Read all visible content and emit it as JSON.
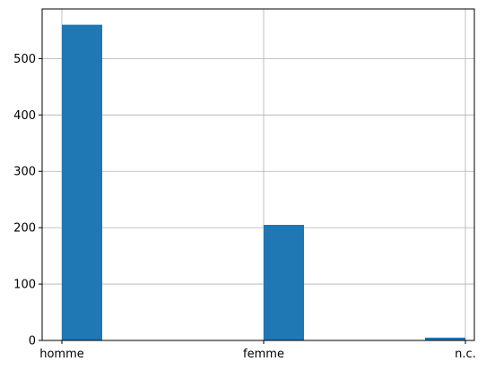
{
  "chart_data": {
    "type": "bar",
    "title": "",
    "xlabel": "",
    "ylabel": "",
    "categories": [
      "homme",
      "femme",
      "n.c."
    ],
    "values": [
      560,
      205,
      5
    ],
    "ylim": [
      0,
      588
    ],
    "yticks": [
      0,
      100,
      200,
      300,
      400,
      500
    ],
    "grid": true,
    "legend": "none",
    "bar_color": "#1f77b4",
    "grid_color": "#b0b0b0"
  }
}
